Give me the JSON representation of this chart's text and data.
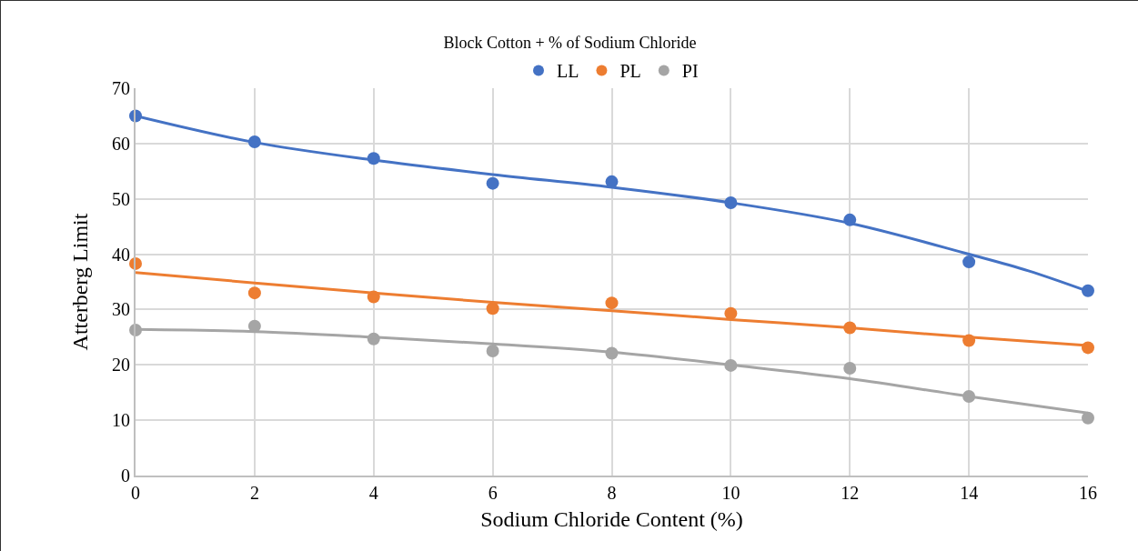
{
  "chart_data": {
    "type": "scatter",
    "title": "Block Cotton + % of Sodium Chloride",
    "xlabel": "Sodium Chloride Content (%)",
    "ylabel": "Atterberg Limit",
    "x": [
      0,
      2,
      4,
      6,
      8,
      10,
      12,
      14,
      16
    ],
    "series": [
      {
        "name": "LL",
        "color": "#4472c4",
        "values": [
          65,
          60.3,
          57.3,
          52.8,
          53.1,
          49.3,
          46.2,
          38.6,
          33.4
        ]
      },
      {
        "name": "PL",
        "color": "#ed7d31",
        "values": [
          38.3,
          33,
          32.3,
          30.2,
          31.2,
          29.3,
          26.7,
          24.4,
          23.1
        ]
      },
      {
        "name": "PI",
        "color": "#a5a5a5",
        "values": [
          26.3,
          27,
          24.7,
          22.5,
          22.1,
          19.9,
          19.4,
          14.3,
          10.4
        ]
      },
      {
        "type": "line",
        "marker": "none",
        "color": "#4472c4",
        "x": [
          0,
          2,
          4,
          6,
          8,
          10,
          12,
          14,
          15,
          16
        ],
        "values": [
          65,
          60.2,
          57,
          54.4,
          52.1,
          49.3,
          45.6,
          40,
          37,
          33.3
        ]
      },
      {
        "type": "line",
        "marker": "none",
        "color": "#ed7d31",
        "x": [
          0,
          2,
          4,
          6,
          8,
          10,
          12,
          14,
          16
        ],
        "values": [
          36.7,
          34.8,
          33,
          31.3,
          29.8,
          28.2,
          26.7,
          25,
          23.5
        ]
      },
      {
        "type": "line",
        "marker": "none",
        "color": "#a5a5a5",
        "x": [
          0,
          2,
          4,
          6,
          8,
          10,
          12,
          14,
          16
        ],
        "values": [
          26.4,
          26,
          25,
          23.8,
          22.3,
          20,
          17.5,
          14.3,
          11.3
        ]
      }
    ],
    "xlim": [
      0,
      16
    ],
    "xticks": [
      0,
      2,
      4,
      6,
      8,
      10,
      12,
      14,
      16
    ],
    "ylim": [
      0,
      70
    ],
    "yticks": [
      0,
      10,
      20,
      30,
      40,
      50,
      60,
      70
    ],
    "grid": true,
    "legend": "top",
    "marker": "circle",
    "line_style": "solid"
  }
}
